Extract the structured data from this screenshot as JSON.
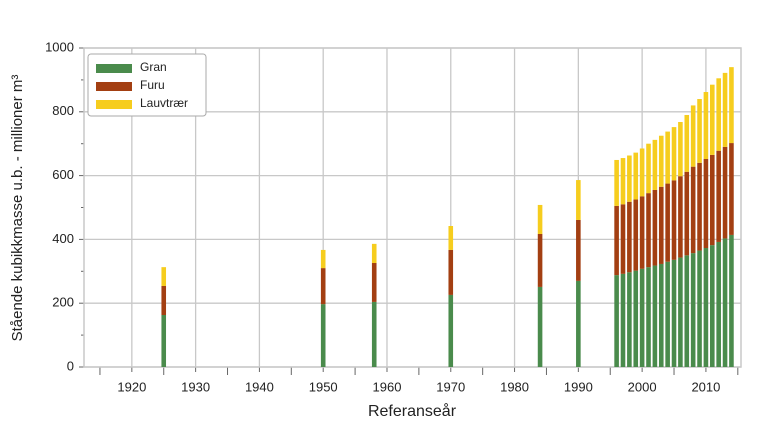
{
  "chart_data": {
    "type": "stacked-bar",
    "x_label": "Referanseår",
    "y_label": "Stående kubikkmasse u.b. - millioner m³",
    "x": [
      1925,
      1950,
      1958,
      1970,
      1984,
      1990,
      1996,
      1997,
      1998,
      1999,
      2000,
      2001,
      2002,
      2003,
      2004,
      2005,
      2006,
      2007,
      2008,
      2009,
      2010,
      2011,
      2012,
      2013,
      2014
    ],
    "series": [
      {
        "name": "Gran",
        "color": "#4a8b4c",
        "values": [
          163,
          197,
          204,
          226,
          251,
          270,
          288,
          292,
          297,
          302,
          308,
          313,
          318,
          323,
          330,
          336,
          343,
          350,
          357,
          365,
          373,
          382,
          392,
          403,
          414
        ]
      },
      {
        "name": "Furu",
        "color": "#a33f12",
        "values": [
          91,
          113,
          122,
          141,
          166,
          191,
          217,
          218,
          221,
          223,
          227,
          232,
          237,
          242,
          245,
          249,
          255,
          262,
          271,
          275,
          279,
          283,
          286,
          287,
          288
        ]
      },
      {
        "name": "Lauvtrær",
        "color": "#f6cd1e",
        "values": [
          59,
          57,
          60,
          75,
          91,
          125,
          144,
          145,
          145,
          147,
          150,
          155,
          157,
          160,
          163,
          167,
          170,
          178,
          192,
          200,
          210,
          220,
          227,
          232,
          238
        ]
      }
    ],
    "xlim": [
      1912.5,
      2015.5
    ],
    "ylim": [
      0,
      1000
    ],
    "xticks": [
      1920,
      1930,
      1940,
      1950,
      1960,
      1970,
      1980,
      1990,
      2000,
      2010
    ],
    "yticks": [
      0,
      200,
      400,
      600,
      800,
      1000
    ],
    "xminorticks": [
      1915,
      1925,
      1935,
      1945,
      1955,
      1965,
      1975,
      1985,
      1995,
      2005,
      2015
    ],
    "yminorticks": [
      100,
      300,
      500,
      700,
      900
    ],
    "grid": true,
    "legend": "top-left"
  }
}
